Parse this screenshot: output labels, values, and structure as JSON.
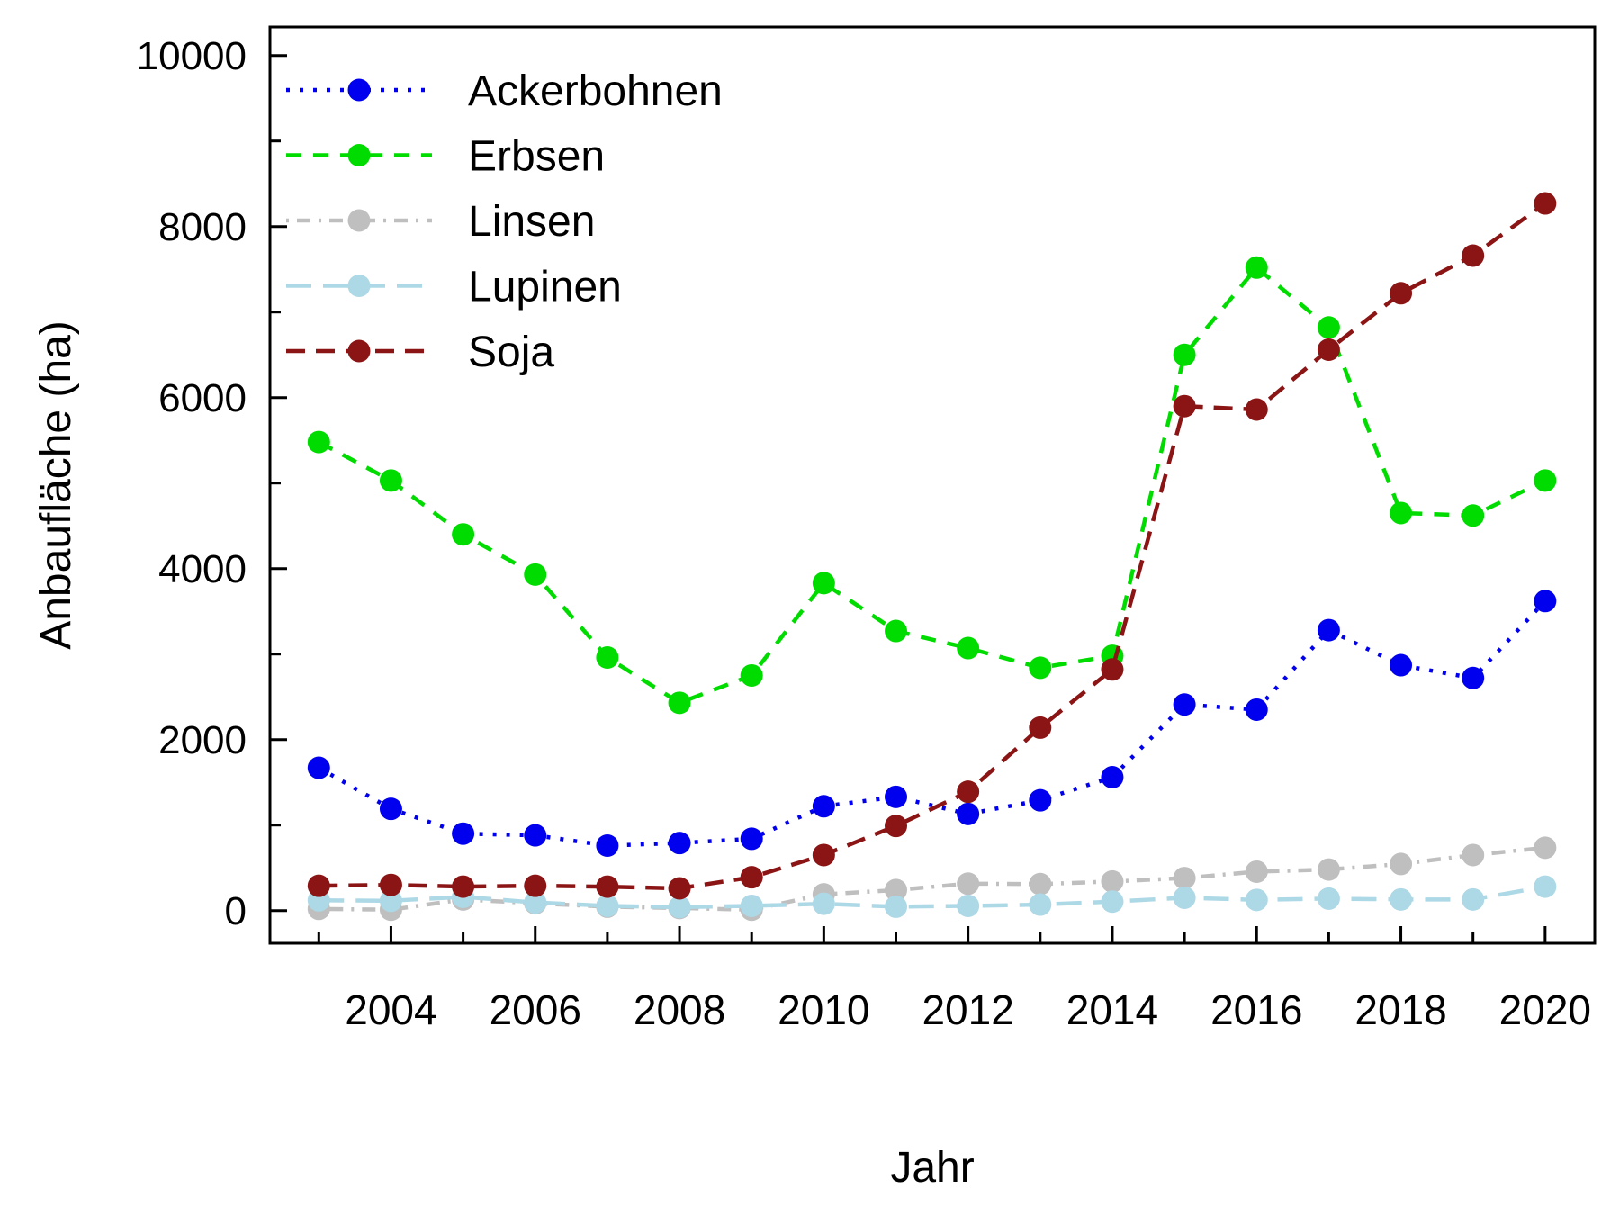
{
  "chart_data": {
    "type": "line",
    "title": "",
    "xlabel": "Jahr",
    "ylabel": "Anbaufläche (ha)",
    "x": [
      2003,
      2004,
      2005,
      2006,
      2007,
      2008,
      2009,
      2010,
      2011,
      2012,
      2013,
      2014,
      2015,
      2016,
      2017,
      2018,
      2019,
      2020
    ],
    "xtick_labels": [
      "2004",
      "2006",
      "2008",
      "2010",
      "2012",
      "2014",
      "2016",
      "2018",
      "2020"
    ],
    "xticks_labeled": [
      2004,
      2006,
      2008,
      2010,
      2012,
      2014,
      2016,
      2018,
      2020
    ],
    "ylim": [
      0,
      10000
    ],
    "yticks": [
      0,
      2000,
      4000,
      6000,
      8000,
      10000
    ],
    "ytick_labels": [
      "0",
      "2000",
      "4000",
      "6000",
      "8000",
      "10000"
    ],
    "yticks_minor": [
      1000,
      3000,
      5000,
      7000,
      9000
    ],
    "grid": false,
    "legend_position": "top-left",
    "axis_color": "#000000",
    "series": [
      {
        "name": "Ackerbohnen",
        "color": "#0000EE",
        "dash": "dotted",
        "values": [
          1670,
          1190,
          900,
          880,
          760,
          790,
          840,
          1220,
          1330,
          1130,
          1290,
          1560,
          2410,
          2350,
          3280,
          2870,
          2720,
          3620
        ]
      },
      {
        "name": "Erbsen",
        "color": "#00DC00",
        "dash": "dashed",
        "values": [
          5480,
          5030,
          4400,
          3930,
          2960,
          2430,
          2750,
          3830,
          3270,
          3070,
          2840,
          2980,
          6500,
          7520,
          6820,
          4650,
          4620,
          5030
        ]
      },
      {
        "name": "Linsen",
        "color": "#BFBFBF",
        "dash": "dashdot",
        "values": [
          20,
          10,
          130,
          85,
          45,
          30,
          10,
          190,
          240,
          315,
          310,
          340,
          380,
          455,
          480,
          545,
          650,
          735
        ]
      },
      {
        "name": "Lupinen",
        "color": "#ADD8E6",
        "dash": "longdash",
        "values": [
          120,
          115,
          160,
          95,
          55,
          40,
          55,
          80,
          45,
          55,
          70,
          105,
          150,
          125,
          140,
          130,
          130,
          280
        ]
      },
      {
        "name": "Soja",
        "color": "#8B1414",
        "dash": "soydash",
        "values": [
          290,
          300,
          280,
          290,
          280,
          260,
          390,
          650,
          990,
          1390,
          2140,
          2820,
          5900,
          5860,
          6560,
          7220,
          7660,
          8270
        ]
      }
    ]
  }
}
